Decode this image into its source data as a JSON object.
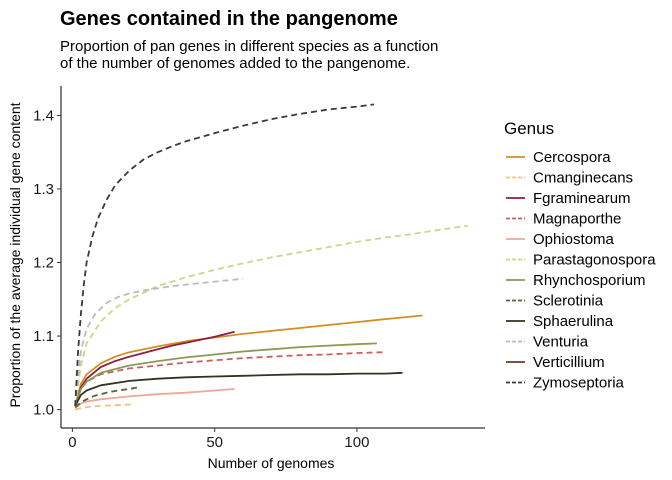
{
  "chart_data": {
    "type": "line",
    "title": "Genes contained in the pangenome",
    "subtitle_lines": [
      "Proportion of pan genes in different species as a function",
      "of the number of genomes added to the pangenome."
    ],
    "xlabel": "Number of genomes",
    "ylabel": "Proportion of the average individual gene content",
    "xlim": [
      -4,
      145
    ],
    "ylim": [
      0.975,
      1.44
    ],
    "x_ticks": [
      0,
      50,
      100
    ],
    "y_ticks": [
      1.0,
      1.1,
      1.2,
      1.3,
      1.4
    ],
    "y_tick_labels": [
      "1.0",
      "1.1",
      "1.2",
      "1.3",
      "1.4"
    ],
    "grid": false,
    "legend_position": "right",
    "legend_title": "Genus",
    "series": [
      {
        "name": "Cercospora",
        "color": "#D08F25",
        "dash": "solid",
        "x": [
          1,
          3,
          5,
          10,
          15,
          20,
          30,
          40,
          50,
          60,
          70,
          80,
          90,
          100,
          110,
          123
        ],
        "y": [
          1.005,
          1.035,
          1.048,
          1.063,
          1.072,
          1.078,
          1.086,
          1.093,
          1.098,
          1.103,
          1.107,
          1.111,
          1.115,
          1.119,
          1.123,
          1.128
        ]
      },
      {
        "name": "Cmanginecans",
        "color": "#F4C27F",
        "dash": "dashed",
        "x": [
          1,
          3,
          6,
          10,
          15,
          20,
          22
        ],
        "y": [
          1.0,
          1.002,
          1.004,
          1.005,
          1.006,
          1.007,
          1.007
        ]
      },
      {
        "name": "Fgraminearum",
        "color": "#8E1F40",
        "dash": "solid",
        "x": [
          1,
          3,
          5,
          10,
          15,
          20,
          25,
          30,
          35,
          40,
          45,
          50,
          57
        ],
        "y": [
          1.005,
          1.03,
          1.042,
          1.058,
          1.066,
          1.072,
          1.077,
          1.082,
          1.087,
          1.091,
          1.095,
          1.099,
          1.106
        ]
      },
      {
        "name": "Magnaporthe",
        "color": "#C9605E",
        "dash": "dashed",
        "x": [
          1,
          3,
          5,
          10,
          20,
          30,
          40,
          50,
          60,
          70,
          80,
          90,
          100,
          110
        ],
        "y": [
          1.005,
          1.028,
          1.038,
          1.048,
          1.056,
          1.06,
          1.064,
          1.067,
          1.07,
          1.072,
          1.074,
          1.075,
          1.077,
          1.078
        ]
      },
      {
        "name": "Ophiostoma",
        "color": "#EEA89A",
        "dash": "solid",
        "x": [
          1,
          3,
          5,
          10,
          20,
          30,
          40,
          50,
          57
        ],
        "y": [
          1.002,
          1.008,
          1.011,
          1.014,
          1.018,
          1.021,
          1.023,
          1.026,
          1.028
        ]
      },
      {
        "name": "Parastagonospora",
        "color": "#C8D888",
        "dash": "dashed",
        "x": [
          1,
          3,
          5,
          10,
          15,
          20,
          30,
          40,
          50,
          60,
          70,
          80,
          90,
          100,
          110,
          120,
          130,
          139
        ],
        "y": [
          1.005,
          1.06,
          1.09,
          1.12,
          1.138,
          1.15,
          1.168,
          1.18,
          1.19,
          1.199,
          1.207,
          1.214,
          1.221,
          1.228,
          1.234,
          1.239,
          1.245,
          1.25
        ]
      },
      {
        "name": "Rhynchosporium",
        "color": "#8A9A55",
        "dash": "solid",
        "x": [
          1,
          3,
          5,
          10,
          20,
          30,
          40,
          50,
          60,
          70,
          80,
          90,
          100,
          107
        ],
        "y": [
          1.005,
          1.028,
          1.038,
          1.05,
          1.06,
          1.066,
          1.071,
          1.075,
          1.079,
          1.082,
          1.085,
          1.087,
          1.089,
          1.09
        ]
      },
      {
        "name": "Sclerotinia",
        "color": "#5C5F3A",
        "dash": "dashed",
        "x": [
          1,
          3,
          5,
          8,
          12,
          16,
          20,
          23
        ],
        "y": [
          1.003,
          1.01,
          1.014,
          1.019,
          1.023,
          1.026,
          1.028,
          1.03
        ]
      },
      {
        "name": "Sphaerulina",
        "color": "#33331F",
        "dash": "solid",
        "x": [
          1,
          3,
          5,
          10,
          20,
          30,
          40,
          50,
          60,
          70,
          80,
          90,
          100,
          110,
          116
        ],
        "y": [
          1.005,
          1.02,
          1.026,
          1.033,
          1.039,
          1.042,
          1.044,
          1.045,
          1.046,
          1.047,
          1.048,
          1.048,
          1.049,
          1.049,
          1.05
        ]
      },
      {
        "name": "Venturia",
        "color": "#BBBBBB",
        "dash": "dashed",
        "x": [
          1,
          3,
          5,
          8,
          12,
          16,
          20,
          25,
          30,
          35,
          40,
          45,
          50,
          55,
          60
        ],
        "y": [
          1.005,
          1.08,
          1.11,
          1.13,
          1.145,
          1.153,
          1.158,
          1.162,
          1.165,
          1.168,
          1.17,
          1.172,
          1.174,
          1.176,
          1.178
        ]
      },
      {
        "name": "Verticillium",
        "color": "#6B3A24",
        "dash": "solid",
        "x": [],
        "y": []
      },
      {
        "name": "Zymoseptoria",
        "color": "#3A3A3A",
        "dash": "dashed",
        "x": [
          1,
          2,
          3,
          4,
          5,
          7,
          9,
          12,
          15,
          20,
          25,
          30,
          35,
          40,
          50,
          60,
          70,
          80,
          90,
          100,
          106
        ],
        "y": [
          1.005,
          1.08,
          1.13,
          1.17,
          1.2,
          1.235,
          1.26,
          1.285,
          1.305,
          1.325,
          1.34,
          1.35,
          1.358,
          1.365,
          1.376,
          1.386,
          1.395,
          1.402,
          1.408,
          1.412,
          1.415
        ]
      }
    ]
  }
}
